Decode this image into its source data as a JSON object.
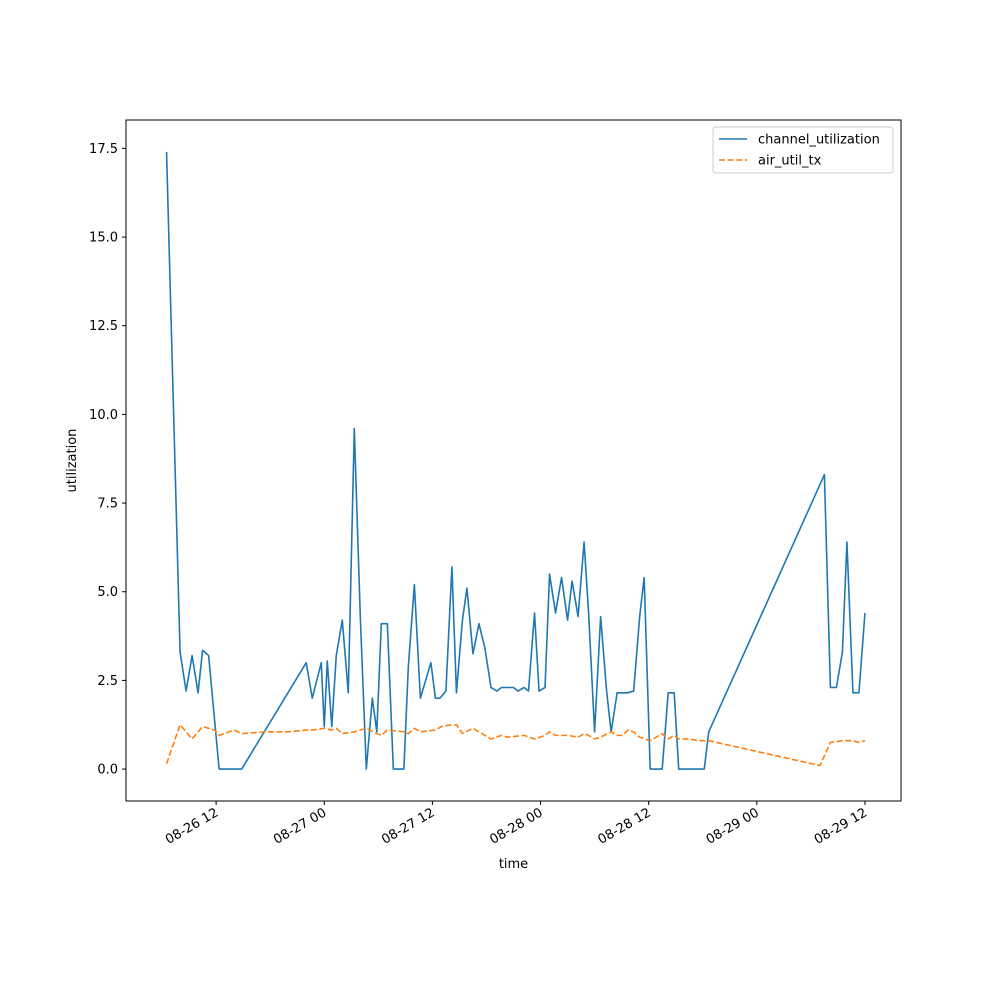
{
  "chart_data": {
    "type": "line",
    "title": "",
    "xlabel": "time",
    "ylabel": "utilization",
    "x_axis": {
      "type": "datetime",
      "range": [
        "2025-08-26 02:00",
        "2025-08-29 16:00"
      ],
      "ticks": [
        {
          "t": "2025-08-26 12:00",
          "label": "08-26 12"
        },
        {
          "t": "2025-08-27 00:00",
          "label": "08-27 00"
        },
        {
          "t": "2025-08-27 12:00",
          "label": "08-27 12"
        },
        {
          "t": "2025-08-28 00:00",
          "label": "08-28 00"
        },
        {
          "t": "2025-08-28 12:00",
          "label": "08-28 12"
        },
        {
          "t": "2025-08-29 00:00",
          "label": "08-29 00"
        },
        {
          "t": "2025-08-29 12:00",
          "label": "08-29 12"
        }
      ]
    },
    "y_axis": {
      "range": [
        -0.9,
        18.3
      ],
      "ticks": [
        {
          "v": 0.0,
          "label": "0.0"
        },
        {
          "v": 2.5,
          "label": "2.5"
        },
        {
          "v": 5.0,
          "label": "5.0"
        },
        {
          "v": 7.5,
          "label": "7.5"
        },
        {
          "v": 10.0,
          "label": "10.0"
        },
        {
          "v": 12.5,
          "label": "12.5"
        },
        {
          "v": 15.0,
          "label": "15.0"
        },
        {
          "v": 17.5,
          "label": "17.5"
        }
      ]
    },
    "grid": false,
    "legend_position": "top-right",
    "series": [
      {
        "name": "channel_utilization",
        "color": "#1f77b4",
        "style": "solid",
        "points": [
          [
            "2025-08-26 06:30",
            17.4
          ],
          [
            "2025-08-26 08:00",
            3.3
          ],
          [
            "2025-08-26 08:40",
            2.2
          ],
          [
            "2025-08-26 09:20",
            3.2
          ],
          [
            "2025-08-26 10:00",
            2.15
          ],
          [
            "2025-08-26 10:30",
            3.35
          ],
          [
            "2025-08-26 11:10",
            3.2
          ],
          [
            "2025-08-26 12:20",
            0.0
          ],
          [
            "2025-08-26 14:50",
            0.0
          ],
          [
            "2025-08-26 22:00",
            3.0
          ],
          [
            "2025-08-26 22:40",
            2.0
          ],
          [
            "2025-08-26 23:40",
            3.0
          ],
          [
            "2025-08-27 00:00",
            1.2
          ],
          [
            "2025-08-27 00:20",
            3.05
          ],
          [
            "2025-08-27 00:50",
            1.2
          ],
          [
            "2025-08-27 01:20",
            3.2
          ],
          [
            "2025-08-27 02:00",
            4.2
          ],
          [
            "2025-08-27 02:40",
            2.15
          ],
          [
            "2025-08-27 03:20",
            9.6
          ],
          [
            "2025-08-27 04:00",
            4.3
          ],
          [
            "2025-08-27 04:40",
            0.0
          ],
          [
            "2025-08-27 05:20",
            2.0
          ],
          [
            "2025-08-27 05:50",
            1.05
          ],
          [
            "2025-08-27 06:20",
            4.1
          ],
          [
            "2025-08-27 07:00",
            4.1
          ],
          [
            "2025-08-27 07:40",
            0.0
          ],
          [
            "2025-08-27 08:50",
            0.0
          ],
          [
            "2025-08-27 09:20",
            2.9
          ],
          [
            "2025-08-27 10:00",
            5.2
          ],
          [
            "2025-08-27 10:40",
            2.0
          ],
          [
            "2025-08-27 11:50",
            3.0
          ],
          [
            "2025-08-27 12:20",
            2.0
          ],
          [
            "2025-08-27 12:50",
            2.0
          ],
          [
            "2025-08-27 13:30",
            2.2
          ],
          [
            "2025-08-27 14:10",
            5.7
          ],
          [
            "2025-08-27 14:40",
            2.15
          ],
          [
            "2025-08-27 15:20",
            4.2
          ],
          [
            "2025-08-27 15:50",
            5.1
          ],
          [
            "2025-08-27 16:30",
            3.25
          ],
          [
            "2025-08-27 17:10",
            4.1
          ],
          [
            "2025-08-27 17:50",
            3.4
          ],
          [
            "2025-08-27 18:30",
            2.3
          ],
          [
            "2025-08-27 19:10",
            2.2
          ],
          [
            "2025-08-27 19:40",
            2.3
          ],
          [
            "2025-08-27 20:20",
            2.3
          ],
          [
            "2025-08-27 21:00",
            2.3
          ],
          [
            "2025-08-27 21:30",
            2.2
          ],
          [
            "2025-08-27 22:10",
            2.3
          ],
          [
            "2025-08-27 22:40",
            2.2
          ],
          [
            "2025-08-27 23:20",
            4.4
          ],
          [
            "2025-08-27 23:50",
            2.2
          ],
          [
            "2025-08-28 00:30",
            2.3
          ],
          [
            "2025-08-28 01:00",
            5.5
          ],
          [
            "2025-08-28 01:40",
            4.4
          ],
          [
            "2025-08-28 02:20",
            5.4
          ],
          [
            "2025-08-28 03:00",
            4.2
          ],
          [
            "2025-08-28 03:30",
            5.3
          ],
          [
            "2025-08-28 04:10",
            4.3
          ],
          [
            "2025-08-28 04:50",
            6.4
          ],
          [
            "2025-08-28 05:20",
            4.4
          ],
          [
            "2025-08-28 06:00",
            1.05
          ],
          [
            "2025-08-28 06:40",
            4.3
          ],
          [
            "2025-08-28 07:20",
            2.2
          ],
          [
            "2025-08-28 07:50",
            1.05
          ],
          [
            "2025-08-28 08:30",
            2.15
          ],
          [
            "2025-08-28 09:10",
            2.15
          ],
          [
            "2025-08-28 09:40",
            2.15
          ],
          [
            "2025-08-28 10:20",
            2.2
          ],
          [
            "2025-08-28 11:00",
            4.3
          ],
          [
            "2025-08-28 11:30",
            5.4
          ],
          [
            "2025-08-28 12:10",
            0.0
          ],
          [
            "2025-08-28 13:30",
            0.0
          ],
          [
            "2025-08-28 14:10",
            2.15
          ],
          [
            "2025-08-28 14:50",
            2.15
          ],
          [
            "2025-08-28 15:20",
            0.0
          ],
          [
            "2025-08-28 18:10",
            0.0
          ],
          [
            "2025-08-28 18:40",
            1.05
          ],
          [
            "2025-08-29 07:30",
            8.3
          ],
          [
            "2025-08-29 08:10",
            2.3
          ],
          [
            "2025-08-29 08:50",
            2.3
          ],
          [
            "2025-08-29 09:30",
            3.3
          ],
          [
            "2025-08-29 10:00",
            6.4
          ],
          [
            "2025-08-29 10:40",
            2.15
          ],
          [
            "2025-08-29 11:20",
            2.15
          ],
          [
            "2025-08-29 12:00",
            4.4
          ]
        ]
      },
      {
        "name": "air_util_tx",
        "color": "#ff7f0e",
        "style": "dashed",
        "points": [
          [
            "2025-08-26 06:30",
            0.15
          ],
          [
            "2025-08-26 08:00",
            1.25
          ],
          [
            "2025-08-26 09:20",
            0.85
          ],
          [
            "2025-08-26 10:30",
            1.2
          ],
          [
            "2025-08-26 11:50",
            1.1
          ],
          [
            "2025-08-26 12:20",
            0.95
          ],
          [
            "2025-08-26 14:00",
            1.1
          ],
          [
            "2025-08-26 14:50",
            1.0
          ],
          [
            "2025-08-26 17:30",
            1.05
          ],
          [
            "2025-08-26 20:00",
            1.05
          ],
          [
            "2025-08-26 22:00",
            1.1
          ],
          [
            "2025-08-26 22:40",
            1.1
          ],
          [
            "2025-08-27 00:00",
            1.15
          ],
          [
            "2025-08-27 00:50",
            1.1
          ],
          [
            "2025-08-27 01:20",
            1.15
          ],
          [
            "2025-08-27 02:00",
            1.0
          ],
          [
            "2025-08-27 03:20",
            1.05
          ],
          [
            "2025-08-27 04:40",
            1.15
          ],
          [
            "2025-08-27 05:50",
            1.0
          ],
          [
            "2025-08-27 06:20",
            0.95
          ],
          [
            "2025-08-27 07:00",
            1.1
          ],
          [
            "2025-08-27 08:50",
            1.05
          ],
          [
            "2025-08-27 09:20",
            1.0
          ],
          [
            "2025-08-27 10:00",
            1.15
          ],
          [
            "2025-08-27 10:40",
            1.05
          ],
          [
            "2025-08-27 12:20",
            1.1
          ],
          [
            "2025-08-27 13:00",
            1.2
          ],
          [
            "2025-08-27 14:10",
            1.25
          ],
          [
            "2025-08-27 14:40",
            1.25
          ],
          [
            "2025-08-27 15:20",
            1.0
          ],
          [
            "2025-08-27 16:30",
            1.15
          ],
          [
            "2025-08-27 17:10",
            1.05
          ],
          [
            "2025-08-27 18:30",
            0.85
          ],
          [
            "2025-08-27 19:40",
            0.95
          ],
          [
            "2025-08-27 20:20",
            0.9
          ],
          [
            "2025-08-27 22:10",
            0.95
          ],
          [
            "2025-08-27 23:20",
            0.85
          ],
          [
            "2025-08-28 00:30",
            0.95
          ],
          [
            "2025-08-28 01:00",
            1.05
          ],
          [
            "2025-08-28 01:40",
            0.95
          ],
          [
            "2025-08-28 03:00",
            0.95
          ],
          [
            "2025-08-28 04:10",
            0.9
          ],
          [
            "2025-08-28 04:50",
            1.0
          ],
          [
            "2025-08-28 05:20",
            0.95
          ],
          [
            "2025-08-28 06:00",
            0.85
          ],
          [
            "2025-08-28 06:40",
            0.9
          ],
          [
            "2025-08-28 07:50",
            1.05
          ],
          [
            "2025-08-28 08:30",
            0.95
          ],
          [
            "2025-08-28 09:10",
            0.95
          ],
          [
            "2025-08-28 09:40",
            1.1
          ],
          [
            "2025-08-28 10:20",
            1.05
          ],
          [
            "2025-08-28 11:00",
            0.9
          ],
          [
            "2025-08-28 12:10",
            0.8
          ],
          [
            "2025-08-28 13:30",
            1.0
          ],
          [
            "2025-08-28 14:10",
            0.85
          ],
          [
            "2025-08-28 14:50",
            0.95
          ],
          [
            "2025-08-28 15:20",
            0.85
          ],
          [
            "2025-08-28 16:30",
            0.85
          ],
          [
            "2025-08-28 17:30",
            0.8
          ],
          [
            "2025-08-28 18:40",
            0.8
          ],
          [
            "2025-08-29 07:00",
            0.1
          ],
          [
            "2025-08-29 08:10",
            0.75
          ],
          [
            "2025-08-29 09:30",
            0.8
          ],
          [
            "2025-08-29 10:40",
            0.8
          ],
          [
            "2025-08-29 11:20",
            0.75
          ],
          [
            "2025-08-29 12:00",
            0.8
          ]
        ]
      }
    ]
  }
}
